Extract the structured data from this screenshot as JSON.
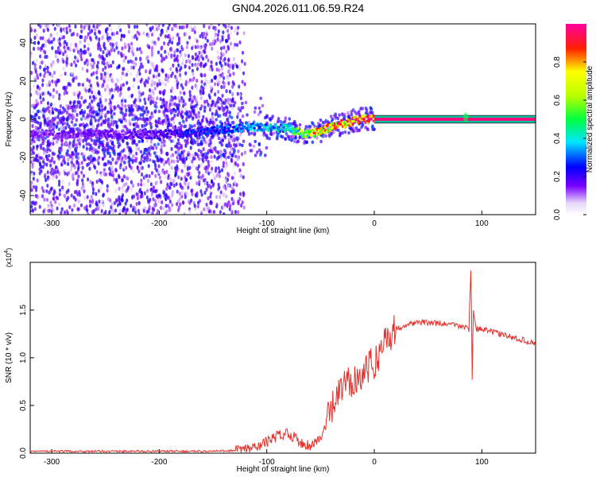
{
  "title": "GN04.2026.011.06.59.R24",
  "chart_data": [
    {
      "type": "heatmap",
      "xlabel": "Height of straight line (km)",
      "ylabel": "Frequency (Hz)",
      "xlim": [
        -320,
        150
      ],
      "ylim": [
        -50,
        50
      ],
      "xticks": [
        -300,
        -200,
        -100,
        0,
        100
      ],
      "yticks": [
        -40,
        -20,
        0,
        20,
        40
      ],
      "colorbar": {
        "label": "Normalized spectral amplitude",
        "range": [
          0.0,
          1.0
        ],
        "ticks": [
          0.0,
          0.2,
          0.4,
          0.6,
          0.8
        ]
      },
      "ridge": {
        "x": [
          -320,
          -250,
          -200,
          -150,
          -120,
          -100,
          -80,
          -65,
          -55,
          -45,
          -35,
          -25,
          -15,
          -5,
          0,
          150
        ],
        "freq": [
          -8,
          -8,
          -8,
          -6,
          -4,
          -4,
          -5,
          -8,
          -7,
          -5,
          -3,
          -2,
          0,
          0,
          0,
          0
        ],
        "amplitude": [
          0.15,
          0.18,
          0.2,
          0.3,
          0.35,
          0.4,
          0.45,
          0.7,
          0.8,
          0.85,
          0.9,
          0.9,
          0.95,
          0.95,
          1.0,
          1.0
        ]
      }
    },
    {
      "type": "line",
      "xlabel": "Height of straight line (km)",
      "ylabel": "SNR (10 * v/v)",
      "yscale_label": "(x10",
      "yscale_exp": "4",
      "xlim": [
        -320,
        150
      ],
      "ylim": [
        0,
        2.0
      ],
      "xticks": [
        -300,
        -200,
        -100,
        0,
        100
      ],
      "yticks": [
        0.0,
        0.5,
        1.0,
        1.5
      ],
      "series": [
        {
          "x": [
            -320,
            -200,
            -150,
            -125,
            -110,
            -100,
            -90,
            -80,
            -70,
            -60,
            -50,
            -45,
            -40,
            -35,
            -30,
            -25,
            -20,
            -15,
            -10,
            -5,
            0,
            5,
            10,
            20,
            30,
            40,
            50,
            60,
            70,
            80,
            85,
            88,
            90,
            91,
            92,
            95,
            100,
            110,
            120,
            130,
            140,
            150
          ],
          "y": [
            0.02,
            0.02,
            0.02,
            0.03,
            0.06,
            0.12,
            0.18,
            0.22,
            0.12,
            0.08,
            0.15,
            0.3,
            0.45,
            0.55,
            0.7,
            0.72,
            0.78,
            0.8,
            0.85,
            0.9,
            0.95,
            1.05,
            1.2,
            1.3,
            1.35,
            1.37,
            1.37,
            1.36,
            1.35,
            1.33,
            1.32,
            1.3,
            2.0,
            0.8,
            1.5,
            1.3,
            1.3,
            1.27,
            1.24,
            1.21,
            1.18,
            1.15
          ]
        }
      ]
    }
  ]
}
